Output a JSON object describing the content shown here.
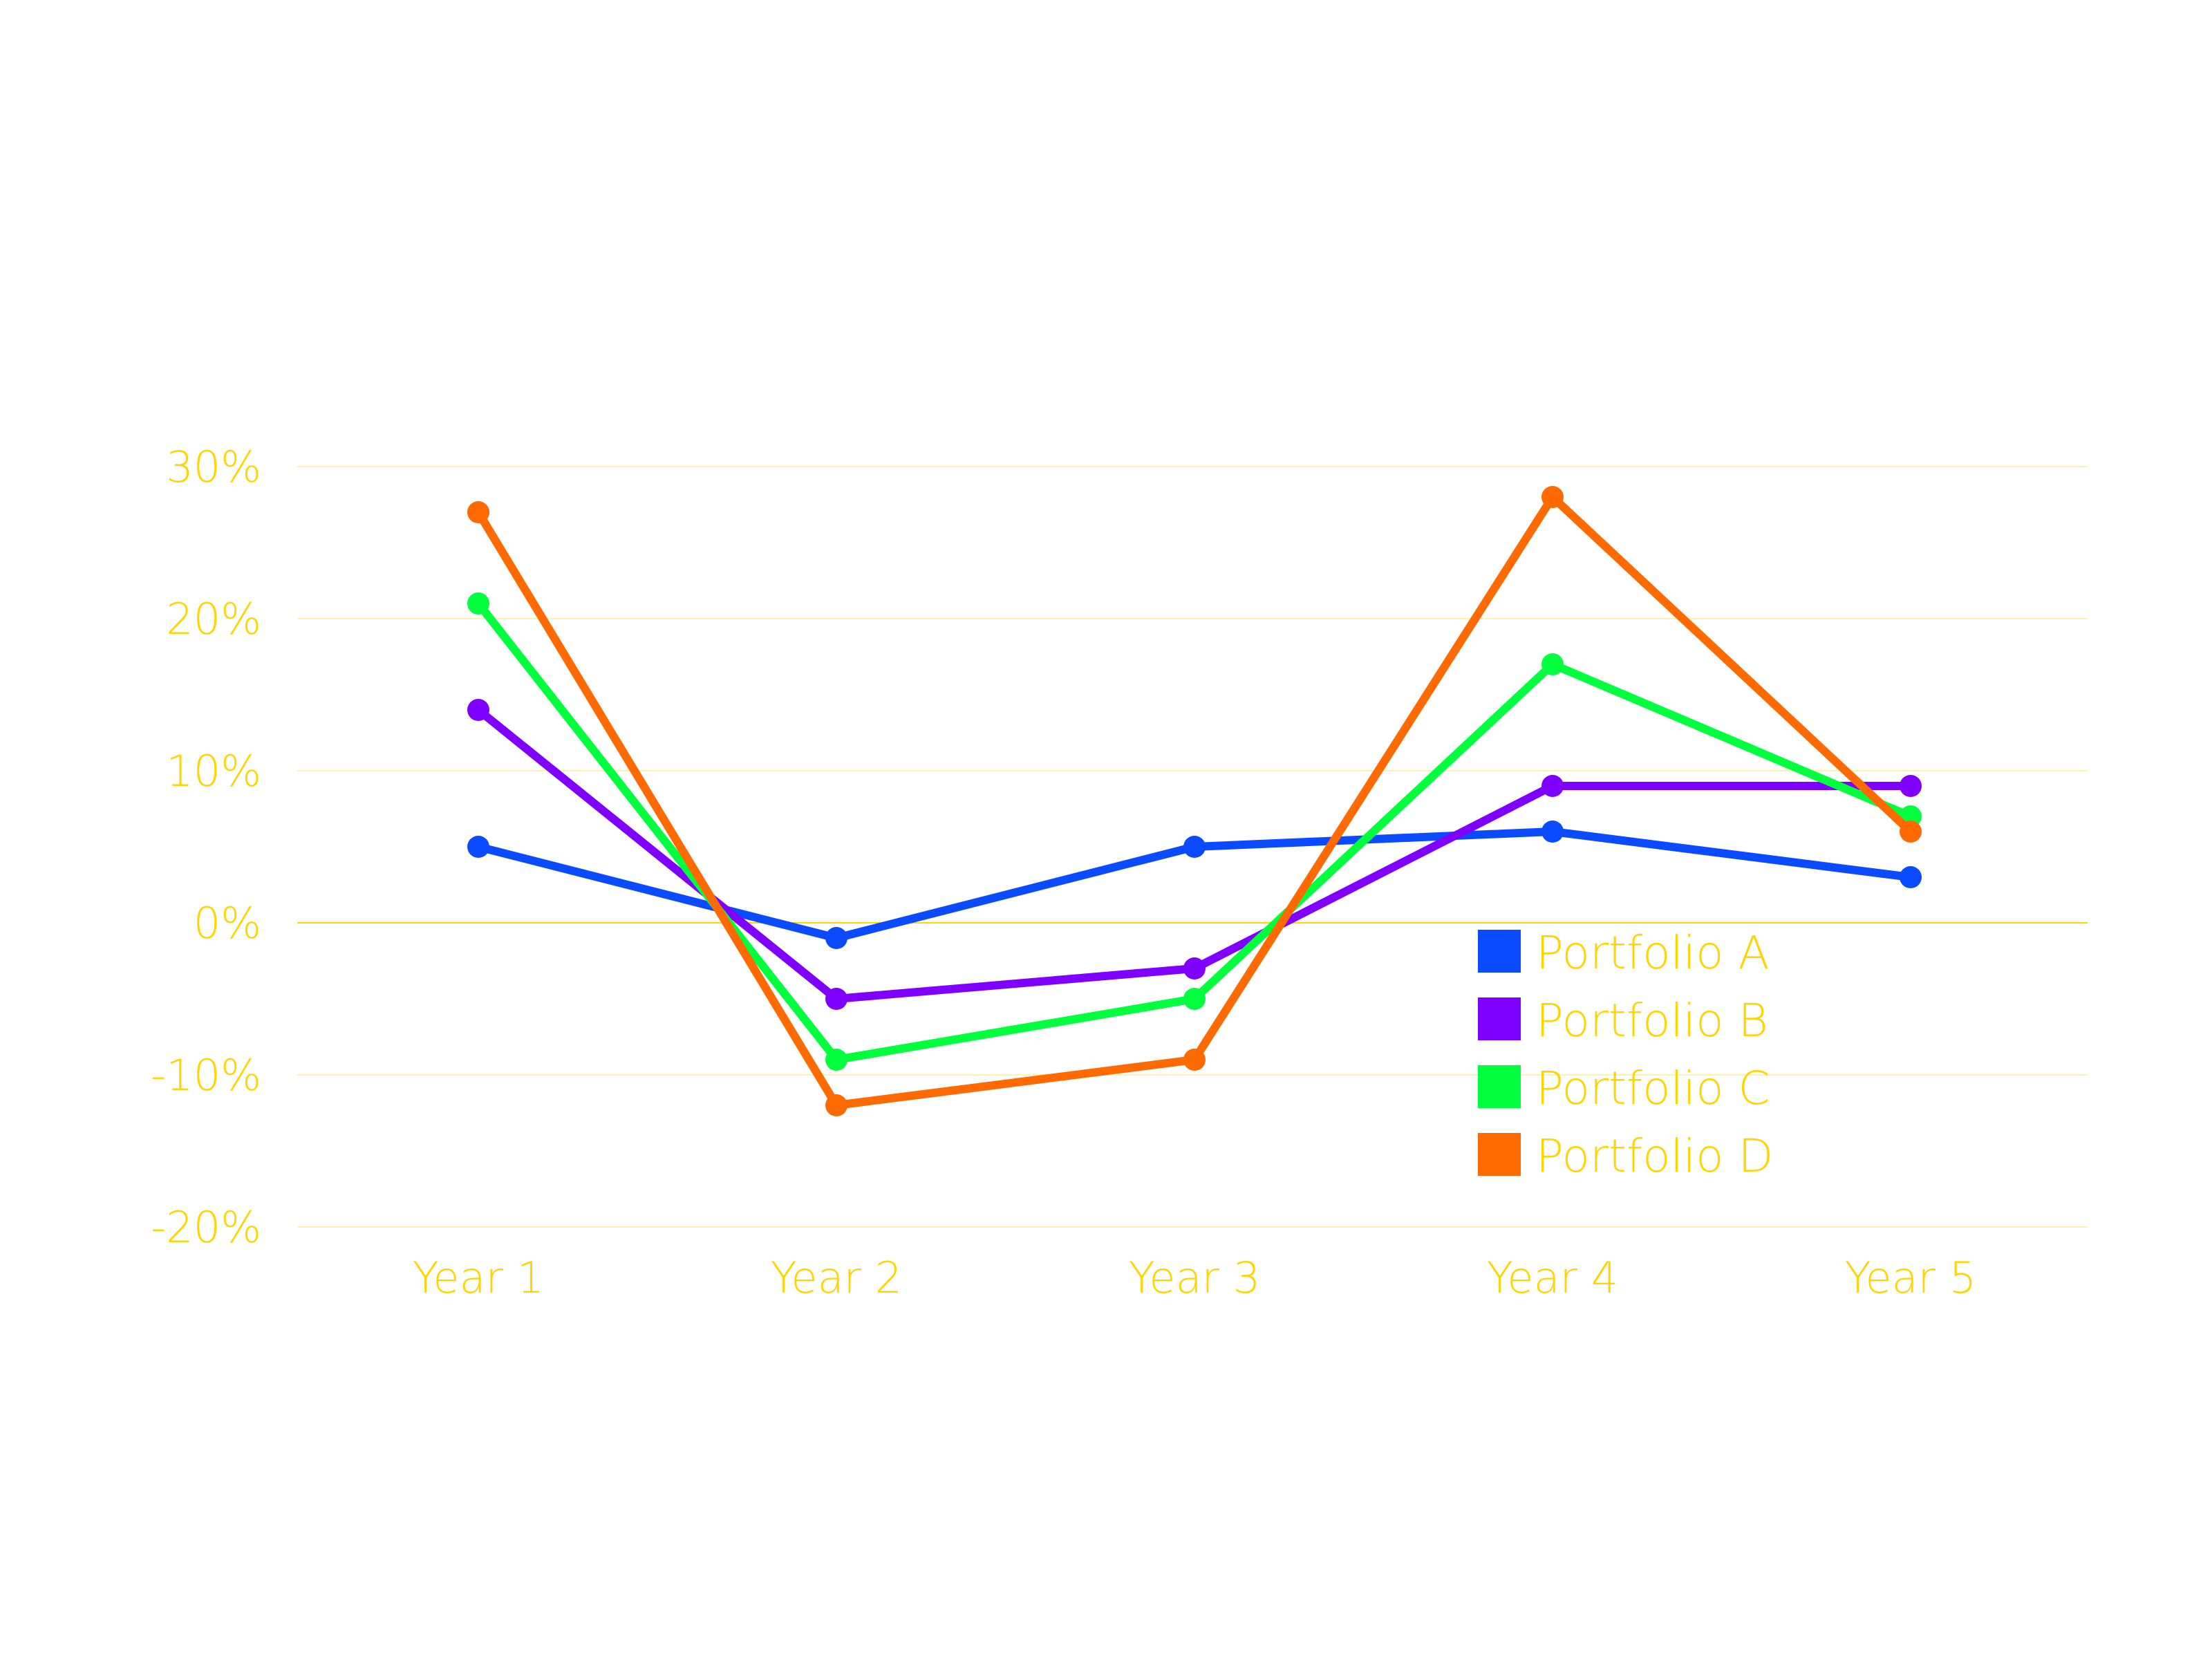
{
  "chart_data": {
    "type": "line",
    "title": "",
    "xlabel": "",
    "ylabel": "",
    "categories": [
      "Year 1",
      "Year 2",
      "Year 3",
      "Year 4",
      "Year 5"
    ],
    "ylim": [
      -20,
      30
    ],
    "yticks": [
      30,
      20,
      10,
      0,
      -10,
      -20
    ],
    "ytick_labels": [
      "30%",
      "20%",
      "10%",
      "0%",
      "-10%",
      "-20%"
    ],
    "grid": true,
    "legend_position": "inside-bottom-right",
    "text_color": "#FFD400",
    "grid_color": "#FFF2B0",
    "series": [
      {
        "name": "Portfolio A",
        "color": "#0A4BFF",
        "values": [
          5,
          -1,
          5,
          6,
          3
        ]
      },
      {
        "name": "Portfolio B",
        "color": "#7F00FF",
        "values": [
          14,
          -5,
          -3,
          9,
          9
        ]
      },
      {
        "name": "Portfolio C",
        "color": "#00FF3C",
        "values": [
          21,
          -9,
          -5,
          17,
          7
        ]
      },
      {
        "name": "Portfolio D",
        "color": "#FF6A00",
        "values": [
          27,
          -12,
          -9,
          28,
          6
        ]
      }
    ]
  }
}
